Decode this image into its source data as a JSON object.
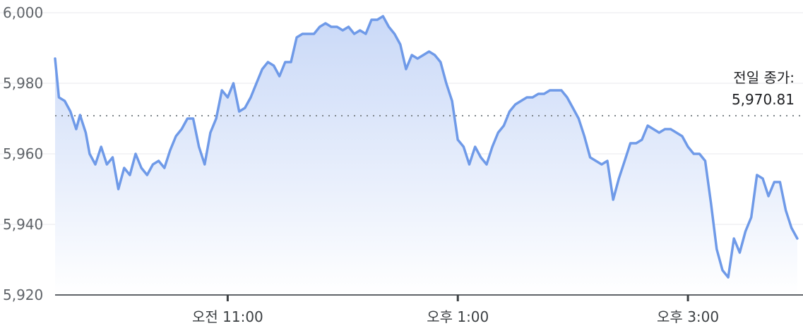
{
  "chart_data": {
    "type": "area",
    "title": "",
    "xlabel": "",
    "ylabel": "",
    "ylim": [
      5920,
      6000
    ],
    "y_ticks": [
      "5,920",
      "5,940",
      "5,960",
      "5,980",
      "6,000"
    ],
    "y_tick_values": [
      5920,
      5940,
      5960,
      5980,
      6000
    ],
    "x_ticks": [
      {
        "label": "오전 11:00",
        "time": "11:00"
      },
      {
        "label": "오후 1:00",
        "time": "13:00"
      },
      {
        "label": "오후 3:00",
        "time": "15:00"
      }
    ],
    "xlim": [
      "09:30",
      "16:00"
    ],
    "previous_close": {
      "label": "전일 종가:",
      "value_text": "5,970.81",
      "value": 5970.81
    },
    "series": [
      {
        "color": "#6f9ae8",
        "points": [
          [
            "09:30",
            5987
          ],
          [
            "09:32",
            5976
          ],
          [
            "09:35",
            5975
          ],
          [
            "09:38",
            5972
          ],
          [
            "09:41",
            5967
          ],
          [
            "09:43",
            5971
          ],
          [
            "09:46",
            5966
          ],
          [
            "09:48",
            5960
          ],
          [
            "09:51",
            5957
          ],
          [
            "09:54",
            5962
          ],
          [
            "09:57",
            5957
          ],
          [
            "10:00",
            5959
          ],
          [
            "10:03",
            5950
          ],
          [
            "10:06",
            5956
          ],
          [
            "10:09",
            5954
          ],
          [
            "10:12",
            5960
          ],
          [
            "10:15",
            5956
          ],
          [
            "10:18",
            5954
          ],
          [
            "10:21",
            5957
          ],
          [
            "10:24",
            5958
          ],
          [
            "10:27",
            5956
          ],
          [
            "10:30",
            5961
          ],
          [
            "10:33",
            5965
          ],
          [
            "10:36",
            5967
          ],
          [
            "10:39",
            5970
          ],
          [
            "10:42",
            5970
          ],
          [
            "10:45",
            5962
          ],
          [
            "10:48",
            5957
          ],
          [
            "10:51",
            5966
          ],
          [
            "10:54",
            5970
          ],
          [
            "10:57",
            5978
          ],
          [
            "11:00",
            5976
          ],
          [
            "11:03",
            5980
          ],
          [
            "11:06",
            5972
          ],
          [
            "11:09",
            5973
          ],
          [
            "11:12",
            5976
          ],
          [
            "11:15",
            5980
          ],
          [
            "11:18",
            5984
          ],
          [
            "11:21",
            5986
          ],
          [
            "11:24",
            5985
          ],
          [
            "11:27",
            5982
          ],
          [
            "11:30",
            5986
          ],
          [
            "11:33",
            5986
          ],
          [
            "11:36",
            5993
          ],
          [
            "11:39",
            5994
          ],
          [
            "11:42",
            5994
          ],
          [
            "11:45",
            5994
          ],
          [
            "11:48",
            5996
          ],
          [
            "11:51",
            5997
          ],
          [
            "11:54",
            5996
          ],
          [
            "11:57",
            5996
          ],
          [
            "12:00",
            5995
          ],
          [
            "12:03",
            5996
          ],
          [
            "12:06",
            5994
          ],
          [
            "12:09",
            5995
          ],
          [
            "12:12",
            5994
          ],
          [
            "12:15",
            5998
          ],
          [
            "12:18",
            5998
          ],
          [
            "12:21",
            5999
          ],
          [
            "12:24",
            5996
          ],
          [
            "12:27",
            5994
          ],
          [
            "12:30",
            5991
          ],
          [
            "12:33",
            5984
          ],
          [
            "12:36",
            5988
          ],
          [
            "12:39",
            5987
          ],
          [
            "12:42",
            5988
          ],
          [
            "12:45",
            5989
          ],
          [
            "12:48",
            5988
          ],
          [
            "12:51",
            5986
          ],
          [
            "12:54",
            5980
          ],
          [
            "12:57",
            5975
          ],
          [
            "13:00",
            5964
          ],
          [
            "13:03",
            5962
          ],
          [
            "13:06",
            5957
          ],
          [
            "13:09",
            5962
          ],
          [
            "13:12",
            5959
          ],
          [
            "13:15",
            5957
          ],
          [
            "13:18",
            5962
          ],
          [
            "13:21",
            5966
          ],
          [
            "13:24",
            5968
          ],
          [
            "13:27",
            5972
          ],
          [
            "13:30",
            5974
          ],
          [
            "13:33",
            5975
          ],
          [
            "13:36",
            5976
          ],
          [
            "13:39",
            5976
          ],
          [
            "13:42",
            5977
          ],
          [
            "13:45",
            5977
          ],
          [
            "13:48",
            5978
          ],
          [
            "13:51",
            5978
          ],
          [
            "13:54",
            5978
          ],
          [
            "13:57",
            5976
          ],
          [
            "14:00",
            5973
          ],
          [
            "14:03",
            5970
          ],
          [
            "14:06",
            5965
          ],
          [
            "14:09",
            5959
          ],
          [
            "14:12",
            5958
          ],
          [
            "14:15",
            5957
          ],
          [
            "14:18",
            5958
          ],
          [
            "14:21",
            5947
          ],
          [
            "14:24",
            5953
          ],
          [
            "14:27",
            5958
          ],
          [
            "14:30",
            5963
          ],
          [
            "14:33",
            5963
          ],
          [
            "14:36",
            5964
          ],
          [
            "14:39",
            5968
          ],
          [
            "14:42",
            5967
          ],
          [
            "14:45",
            5966
          ],
          [
            "14:48",
            5967
          ],
          [
            "14:51",
            5967
          ],
          [
            "14:54",
            5966
          ],
          [
            "14:57",
            5965
          ],
          [
            "15:00",
            5962
          ],
          [
            "15:03",
            5960
          ],
          [
            "15:06",
            5960
          ],
          [
            "15:09",
            5958
          ],
          [
            "15:12",
            5946
          ],
          [
            "15:15",
            5933
          ],
          [
            "15:18",
            5927
          ],
          [
            "15:21",
            5925
          ],
          [
            "15:24",
            5936
          ],
          [
            "15:27",
            5932
          ],
          [
            "15:30",
            5938
          ],
          [
            "15:33",
            5942
          ],
          [
            "15:36",
            5954
          ],
          [
            "15:39",
            5953
          ],
          [
            "15:42",
            5948
          ],
          [
            "15:45",
            5952
          ],
          [
            "15:48",
            5952
          ],
          [
            "15:51",
            5944
          ],
          [
            "15:54",
            5939
          ],
          [
            "15:57",
            5936
          ]
        ]
      }
    ],
    "grid": true,
    "legend": "none"
  }
}
